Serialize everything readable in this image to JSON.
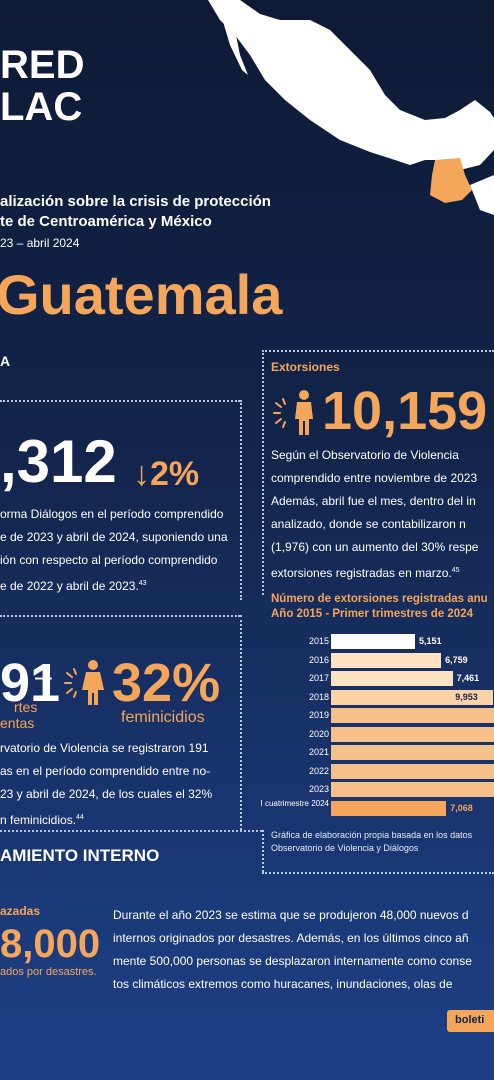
{
  "brand": {
    "line1": "RED",
    "line2": "LAC"
  },
  "header": {
    "title_line1": "alización sobre la crisis de protección",
    "title_line2": "te de Centroamérica y México",
    "period": "23 – abril 2024"
  },
  "country": "Guatemala",
  "section_a": "A",
  "left_stat": {
    "number": ",312",
    "change": "↓2%",
    "text_l1": "orma Diálogos en el período comprendido",
    "text_l2": "e de 2023 y abril de 2024, suponiendo una",
    "text_l3": "ión con respecto al período comprendido",
    "text_l4": "e de 2022 y abril de 2023.",
    "footnote": "43"
  },
  "women": {
    "number": "91",
    "dash": "–",
    "label_l1": "rtes",
    "label_l2": "entas",
    "pct": "32%",
    "pct_label": "feminicidios",
    "text_l1": "rvatorio de Violencia se registraron 191",
    "text_l2": "as en el período comprendido entre no-",
    "text_l3": "23 y abril de 2024, de los cuales el 32%",
    "text_l4": "n feminicidios.",
    "footnote": "44"
  },
  "extortions": {
    "heading": "Extorsiones",
    "number": "10,159",
    "text_l1": "Según el Observatorio de Violencia",
    "text_l2": "comprendido entre noviembre de 2023",
    "text_l3": "Además, abril fue el mes, dentro del in",
    "text_l4": "analizado, donde se contabilizaron n",
    "text_l5": "(1,976) con un aumento del 30% respe",
    "text_l6": "extorsiones registradas en marzo.",
    "footnote": "45"
  },
  "chart_data": {
    "type": "bar",
    "title_l1": "Número de extorsiones registradas anu",
    "title_l2": "Año 2015 - Primer trimestres de 2024",
    "categories": [
      "2015",
      "2016",
      "2017",
      "2018",
      "2019",
      "2020",
      "2021",
      "2022",
      "2023",
      "I cuatrimestre 2024"
    ],
    "values": [
      5151,
      6759,
      7461,
      9953,
      null,
      null,
      null,
      null,
      null,
      7068
    ],
    "value_labels": [
      "5,151",
      "6,759",
      "7,461",
      "9,953",
      "",
      "",
      "",
      "",
      "",
      "7,068"
    ],
    "source_l1": "Gráfica de elaboración propia basada en los datos",
    "source_l2": "Observatorio de Violencia y Diálogos"
  },
  "displacement": {
    "heading": "AMIENTO INTERNO",
    "sub": "azadas",
    "number": "8,000",
    "number_label": "ados por desastres.",
    "text_l1": "Durante el año 2023 se estima que se produjeron 48,000 nuevos d",
    "text_l2": "internos originados por desastres. Además, en los últimos cinco añ",
    "text_l3": "mente 500,000 personas se desplazaron internamente como conse",
    "text_l4": "tos climáticos extremos como huracanes, inundaciones, olas de"
  },
  "footer_button": "boleti",
  "colors": {
    "accent": "#f4a65a",
    "background": "#13244a",
    "bar_light": "#fde2c4",
    "bar_mid": "#f6c08a"
  }
}
